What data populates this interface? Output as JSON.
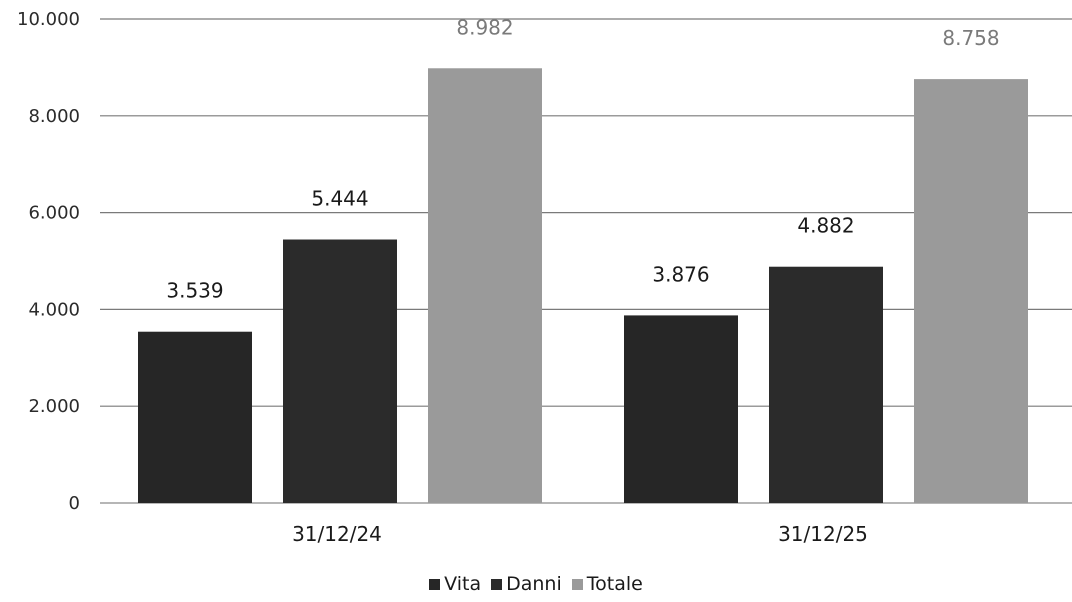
{
  "chart_data": {
    "type": "bar",
    "categories": [
      "31/12/24",
      "31/12/25"
    ],
    "series": [
      {
        "name": "Vita",
        "values": [
          3539,
          3876
        ],
        "labels": [
          "3.539",
          "3.876"
        ],
        "color": "#262626",
        "label_color": "#1a1a1a"
      },
      {
        "name": "Danni",
        "values": [
          5444,
          4882
        ],
        "labels": [
          "5.444",
          "4.882"
        ],
        "color": "#2b2b2b",
        "label_color": "#1a1a1a"
      },
      {
        "name": "Totale",
        "values": [
          8982,
          8758
        ],
        "labels": [
          "8.982",
          "8.758"
        ],
        "color": "#9a9a9a",
        "label_color": "#7a7a7a"
      }
    ],
    "ylim": [
      0,
      10000
    ],
    "yticks": [
      0,
      2000,
      4000,
      6000,
      8000,
      10000
    ],
    "ytick_labels": [
      "0",
      "2.000",
      "4.000",
      "6.000",
      "8.000",
      "10.000"
    ],
    "grid": true,
    "legend_position": "bottom",
    "title": "",
    "xlabel": "",
    "ylabel": ""
  }
}
